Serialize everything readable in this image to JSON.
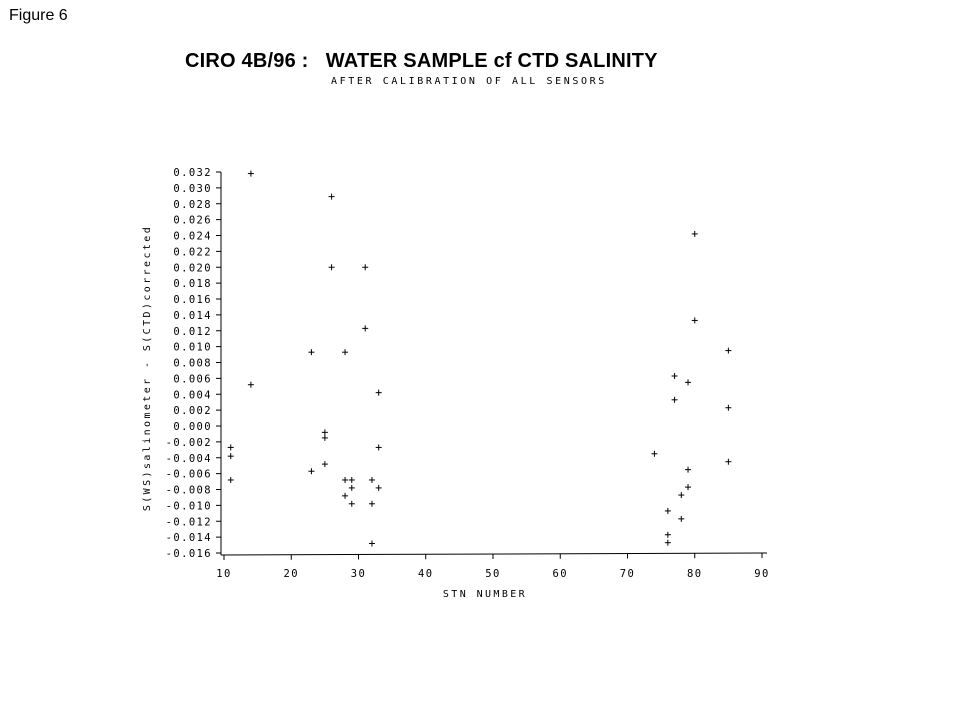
{
  "figure_label": "Figure 6",
  "chart_data": {
    "type": "scatter",
    "title": "CIRO 4B/96 :   WATER SAMPLE cf CTD SALINITY",
    "subtitle": "AFTER CALIBRATION OF ALL SENSORS",
    "xlabel": "STN NUMBER",
    "ylabel": "S(WS)salinometer - S(CTD)corrected",
    "xlim": [
      10,
      90
    ],
    "ylim": [
      -0.016,
      0.032
    ],
    "x_ticks": [
      10,
      20,
      30,
      40,
      50,
      60,
      70,
      80,
      90
    ],
    "x_tick_labels": [
      "10",
      "20",
      "30",
      "40",
      "50",
      "60",
      "70",
      "80",
      "90"
    ],
    "y_ticks": [
      0.032,
      0.03,
      0.028,
      0.026,
      0.024,
      0.022,
      0.02,
      0.018,
      0.016,
      0.014,
      0.012,
      0.01,
      0.008,
      0.006,
      0.004,
      0.002,
      0.0,
      -0.002,
      -0.004,
      -0.006,
      -0.008,
      -0.01,
      -0.012,
      -0.014,
      -0.016
    ],
    "y_tick_labels": [
      "0.032",
      "0.030",
      "0.028",
      "0.026",
      "0.024",
      "0.022",
      "0.020",
      "0.018",
      "0.016",
      "0.014",
      "0.012",
      "0.010",
      "0.008",
      "0.006",
      "0.004",
      "0.002",
      "0.000",
      "-0.002",
      "-0.004",
      "-0.006",
      "-0.008",
      "-0.010",
      "-0.012",
      "-0.014",
      "-0.016"
    ],
    "marker": "+",
    "grid": false,
    "points": [
      {
        "x": 11,
        "y": -0.0027
      },
      {
        "x": 11,
        "y": -0.0038
      },
      {
        "x": 11,
        "y": -0.0068
      },
      {
        "x": 14,
        "y": 0.0318
      },
      {
        "x": 14,
        "y": 0.0052
      },
      {
        "x": 23,
        "y": 0.0093
      },
      {
        "x": 23,
        "y": -0.0057
      },
      {
        "x": 25,
        "y": -0.0008
      },
      {
        "x": 25,
        "y": -0.0015
      },
      {
        "x": 25,
        "y": -0.0048
      },
      {
        "x": 26,
        "y": 0.0289
      },
      {
        "x": 26,
        "y": 0.02
      },
      {
        "x": 28,
        "y": 0.0093
      },
      {
        "x": 28,
        "y": -0.0068
      },
      {
        "x": 28,
        "y": -0.0088
      },
      {
        "x": 29,
        "y": -0.0068
      },
      {
        "x": 29,
        "y": -0.0078
      },
      {
        "x": 29,
        "y": -0.0098
      },
      {
        "x": 31,
        "y": 0.02
      },
      {
        "x": 31,
        "y": 0.0123
      },
      {
        "x": 32,
        "y": -0.0068
      },
      {
        "x": 32,
        "y": -0.0098
      },
      {
        "x": 32,
        "y": -0.0148
      },
      {
        "x": 33,
        "y": 0.0042
      },
      {
        "x": 33,
        "y": -0.0027
      },
      {
        "x": 33,
        "y": -0.0078
      },
      {
        "x": 74,
        "y": -0.0035
      },
      {
        "x": 76,
        "y": -0.0107
      },
      {
        "x": 76,
        "y": -0.0137
      },
      {
        "x": 76,
        "y": -0.0147
      },
      {
        "x": 77,
        "y": 0.0063
      },
      {
        "x": 77,
        "y": 0.0033
      },
      {
        "x": 78,
        "y": -0.0087
      },
      {
        "x": 78,
        "y": -0.0117
      },
      {
        "x": 79,
        "y": 0.0055
      },
      {
        "x": 79,
        "y": -0.0055
      },
      {
        "x": 79,
        "y": -0.0077
      },
      {
        "x": 80,
        "y": 0.0242
      },
      {
        "x": 80,
        "y": 0.0133
      },
      {
        "x": 85,
        "y": 0.0095
      },
      {
        "x": 85,
        "y": 0.0023
      },
      {
        "x": 85,
        "y": -0.0045
      }
    ]
  }
}
